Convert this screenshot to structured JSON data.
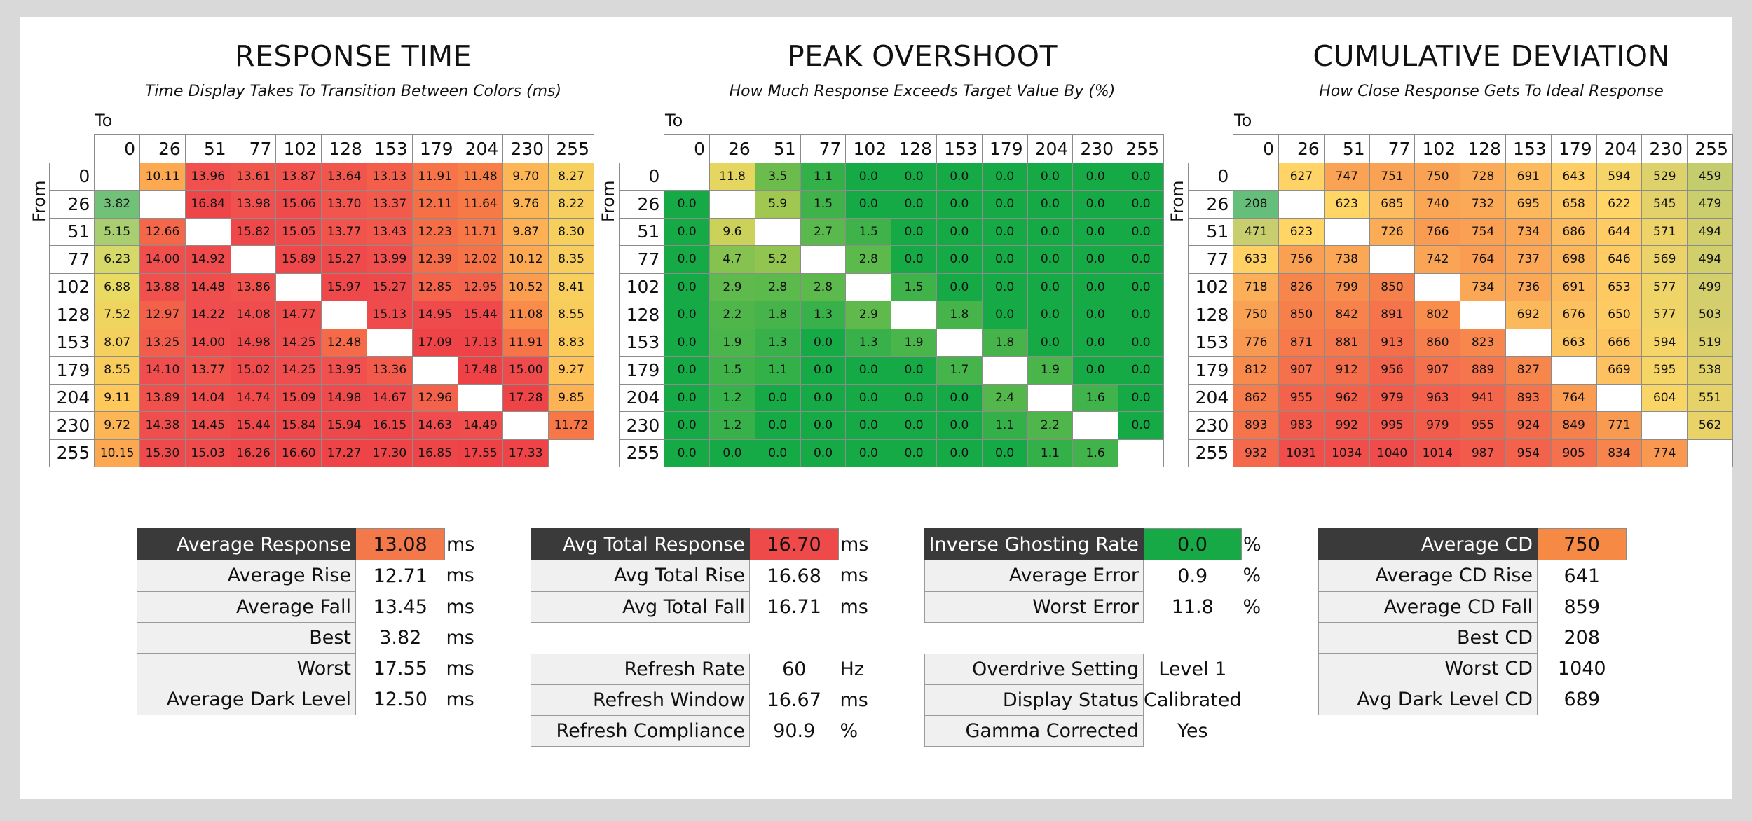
{
  "chart_data": [
    {
      "type": "heatmap",
      "title": "RESPONSE TIME",
      "subtitle": "Time Display Takes To Transition Between Colors (ms)",
      "xlabel": "To",
      "ylabel": "From",
      "x": [
        0,
        26,
        51,
        77,
        102,
        128,
        153,
        179,
        204,
        230,
        255
      ],
      "y": [
        0,
        26,
        51,
        77,
        102,
        128,
        153,
        179,
        204,
        230,
        255
      ],
      "values": [
        [
          null,
          "10.11",
          "13.96",
          "13.61",
          "13.87",
          "13.64",
          "13.13",
          "11.91",
          "11.48",
          "9.70",
          "8.27"
        ],
        [
          "3.82",
          null,
          "16.84",
          "13.98",
          "15.06",
          "13.70",
          "13.37",
          "12.11",
          "11.64",
          "9.76",
          "8.22"
        ],
        [
          "5.15",
          "12.66",
          null,
          "15.82",
          "15.05",
          "13.77",
          "13.43",
          "12.23",
          "11.71",
          "9.87",
          "8.30"
        ],
        [
          "6.23",
          "14.00",
          "14.92",
          null,
          "15.89",
          "15.27",
          "13.99",
          "12.39",
          "12.02",
          "10.12",
          "8.35"
        ],
        [
          "6.88",
          "13.88",
          "14.48",
          "13.86",
          null,
          "15.97",
          "15.27",
          "12.85",
          "12.95",
          "10.52",
          "8.41"
        ],
        [
          "7.52",
          "12.97",
          "14.22",
          "14.08",
          "14.77",
          null,
          "15.13",
          "14.95",
          "15.44",
          "11.08",
          "8.55"
        ],
        [
          "8.07",
          "13.25",
          "14.00",
          "14.98",
          "14.25",
          "12.48",
          null,
          "17.09",
          "17.13",
          "11.91",
          "8.83"
        ],
        [
          "8.55",
          "14.10",
          "13.77",
          "15.02",
          "14.25",
          "13.95",
          "13.36",
          null,
          "17.48",
          "15.00",
          "9.27"
        ],
        [
          "9.11",
          "13.89",
          "14.04",
          "14.74",
          "15.09",
          "14.98",
          "14.67",
          "12.96",
          null,
          "17.28",
          "9.85"
        ],
        [
          "9.72",
          "14.38",
          "14.45",
          "15.44",
          "15.84",
          "15.94",
          "16.15",
          "14.63",
          "14.49",
          null,
          "11.72"
        ],
        [
          "10.15",
          "15.30",
          "15.03",
          "16.26",
          "16.60",
          "17.27",
          "17.30",
          "16.85",
          "17.55",
          "17.33",
          null
        ]
      ]
    },
    {
      "type": "heatmap",
      "title": "PEAK OVERSHOOT",
      "subtitle": "How Much Response Exceeds Target Value By (%)",
      "xlabel": "To",
      "ylabel": "From",
      "x": [
        0,
        26,
        51,
        77,
        102,
        128,
        153,
        179,
        204,
        230,
        255
      ],
      "y": [
        0,
        26,
        51,
        77,
        102,
        128,
        153,
        179,
        204,
        230,
        255
      ],
      "values": [
        [
          null,
          "11.8",
          "3.5",
          "1.1",
          "0.0",
          "0.0",
          "0.0",
          "0.0",
          "0.0",
          "0.0",
          "0.0"
        ],
        [
          "0.0",
          null,
          "5.9",
          "1.5",
          "0.0",
          "0.0",
          "0.0",
          "0.0",
          "0.0",
          "0.0",
          "0.0"
        ],
        [
          "0.0",
          "9.6",
          null,
          "2.7",
          "1.5",
          "0.0",
          "0.0",
          "0.0",
          "0.0",
          "0.0",
          "0.0"
        ],
        [
          "0.0",
          "4.7",
          "5.2",
          null,
          "2.8",
          "0.0",
          "0.0",
          "0.0",
          "0.0",
          "0.0",
          "0.0"
        ],
        [
          "0.0",
          "2.9",
          "2.8",
          "2.8",
          null,
          "1.5",
          "0.0",
          "0.0",
          "0.0",
          "0.0",
          "0.0"
        ],
        [
          "0.0",
          "2.2",
          "1.8",
          "1.3",
          "2.9",
          null,
          "1.8",
          "0.0",
          "0.0",
          "0.0",
          "0.0"
        ],
        [
          "0.0",
          "1.9",
          "1.3",
          "0.0",
          "1.3",
          "1.9",
          null,
          "1.8",
          "0.0",
          "0.0",
          "0.0"
        ],
        [
          "0.0",
          "1.5",
          "1.1",
          "0.0",
          "0.0",
          "0.0",
          "1.7",
          null,
          "1.9",
          "0.0",
          "0.0"
        ],
        [
          "0.0",
          "1.2",
          "0.0",
          "0.0",
          "0.0",
          "0.0",
          "0.0",
          "2.4",
          null,
          "1.6",
          "0.0"
        ],
        [
          "0.0",
          "1.2",
          "0.0",
          "0.0",
          "0.0",
          "0.0",
          "0.0",
          "1.1",
          "2.2",
          null,
          "0.0"
        ],
        [
          "0.0",
          "0.0",
          "0.0",
          "0.0",
          "0.0",
          "0.0",
          "0.0",
          "0.0",
          "1.1",
          "1.6",
          null
        ]
      ]
    },
    {
      "type": "heatmap",
      "title": "CUMULATIVE DEVIATION",
      "subtitle": "How Close Response Gets To Ideal Response",
      "xlabel": "To",
      "ylabel": "From",
      "x": [
        0,
        26,
        51,
        77,
        102,
        128,
        153,
        179,
        204,
        230,
        255
      ],
      "y": [
        0,
        26,
        51,
        77,
        102,
        128,
        153,
        179,
        204,
        230,
        255
      ],
      "values": [
        [
          null,
          "627",
          "747",
          "751",
          "750",
          "728",
          "691",
          "643",
          "594",
          "529",
          "459"
        ],
        [
          "208",
          null,
          "623",
          "685",
          "740",
          "732",
          "695",
          "658",
          "622",
          "545",
          "479"
        ],
        [
          "471",
          "623",
          null,
          "726",
          "766",
          "754",
          "734",
          "686",
          "644",
          "571",
          "494"
        ],
        [
          "633",
          "756",
          "738",
          null,
          "742",
          "764",
          "737",
          "698",
          "646",
          "569",
          "494"
        ],
        [
          "718",
          "826",
          "799",
          "850",
          null,
          "734",
          "736",
          "691",
          "653",
          "577",
          "499"
        ],
        [
          "750",
          "850",
          "842",
          "891",
          "802",
          null,
          "692",
          "676",
          "650",
          "577",
          "503"
        ],
        [
          "776",
          "871",
          "881",
          "913",
          "860",
          "823",
          null,
          "663",
          "666",
          "594",
          "519"
        ],
        [
          "812",
          "907",
          "912",
          "956",
          "907",
          "889",
          "827",
          null,
          "669",
          "595",
          "538"
        ],
        [
          "862",
          "955",
          "962",
          "979",
          "963",
          "941",
          "893",
          "764",
          null,
          "604",
          "551"
        ],
        [
          "893",
          "983",
          "992",
          "995",
          "979",
          "955",
          "924",
          "849",
          "771",
          null,
          "562"
        ],
        [
          "932",
          "1031",
          "1034",
          "1040",
          "1014",
          "987",
          "954",
          "905",
          "834",
          "774",
          null
        ]
      ]
    }
  ],
  "stats": [
    {
      "rows": [
        {
          "label": "Average Response",
          "value": "13.08",
          "unit": "ms",
          "highlight": "#f4794a"
        },
        {
          "label": "Average Rise",
          "value": "12.71",
          "unit": "ms"
        },
        {
          "label": "Average Fall",
          "value": "13.45",
          "unit": "ms"
        },
        {
          "label": "Best",
          "value": "3.82",
          "unit": "ms"
        },
        {
          "label": "Worst",
          "value": "17.55",
          "unit": "ms"
        },
        {
          "label": "Average Dark Level",
          "value": "12.50",
          "unit": "ms"
        }
      ]
    },
    {
      "rows": [
        {
          "label": "Avg Total Response",
          "value": "16.70",
          "unit": "ms",
          "highlight": "#ef4a4a"
        },
        {
          "label": "Avg Total Rise",
          "value": "16.68",
          "unit": "ms"
        },
        {
          "label": "Avg Total Fall",
          "value": "16.71",
          "unit": "ms"
        },
        null,
        {
          "label": "Refresh Rate",
          "value": "60",
          "unit": "Hz"
        },
        {
          "label": "Refresh Window",
          "value": "16.67",
          "unit": "ms"
        },
        {
          "label": "Refresh Compliance",
          "value": "90.9",
          "unit": "%"
        }
      ]
    },
    {
      "rows": [
        {
          "label": "Inverse Ghosting Rate",
          "value": "0.0",
          "unit": "%",
          "highlight": "#16a945"
        },
        {
          "label": "Average Error",
          "value": "0.9",
          "unit": "%"
        },
        {
          "label": "Worst Error",
          "value": "11.8",
          "unit": "%"
        },
        null,
        {
          "label": "Overdrive Setting",
          "value": "Level 1",
          "unit": ""
        },
        {
          "label": "Display Status",
          "value": "Calibrated",
          "unit": ""
        },
        {
          "label": "Gamma Corrected",
          "value": "Yes",
          "unit": ""
        }
      ]
    },
    {
      "rows": [
        {
          "label": "Average CD",
          "value": "750",
          "unit": "",
          "highlight": "#f68a45"
        },
        {
          "label": "Average CD Rise",
          "value": "641",
          "unit": ""
        },
        {
          "label": "Average CD Fall",
          "value": "859",
          "unit": ""
        },
        {
          "label": "Best CD",
          "value": "208",
          "unit": ""
        },
        {
          "label": "Worst CD",
          "value": "1040",
          "unit": ""
        },
        {
          "label": "Avg Dark Level CD",
          "value": "689",
          "unit": ""
        }
      ]
    }
  ]
}
